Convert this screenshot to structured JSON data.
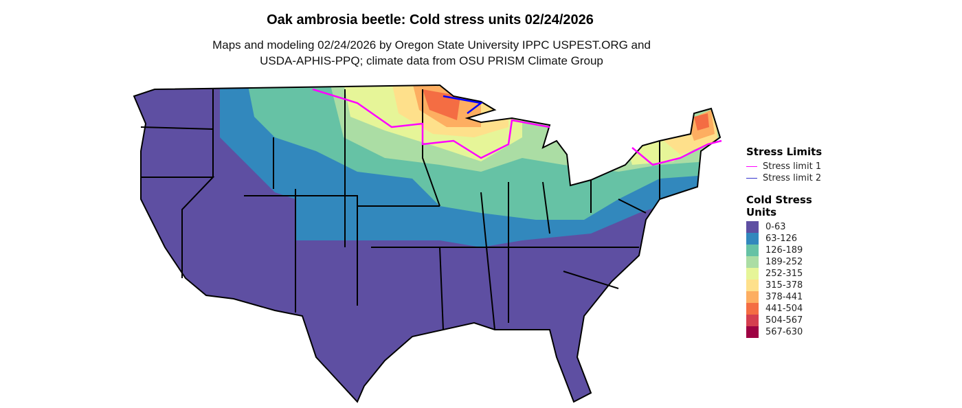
{
  "title": "Oak ambrosia beetle: Cold stress units 02/24/2026",
  "subtitle_line1": "Maps and modeling 02/24/2026 by Oregon State University IPPC USPEST.ORG and",
  "subtitle_line2": "USDA-APHIS-PPQ; climate data from OSU PRISM Climate Group",
  "legend": {
    "stress_title": "Stress Limits",
    "stress": [
      {
        "label": "Stress limit 1",
        "color": "#FF00FF"
      },
      {
        "label": "Stress limit 2",
        "color": "#0000FF"
      }
    ],
    "csu_title_1": "Cold Stress",
    "csu_title_2": "Units",
    "bins": [
      {
        "label": "0-63",
        "color": "#5E4FA2"
      },
      {
        "label": "63-126",
        "color": "#3288BD"
      },
      {
        "label": "126-189",
        "color": "#66C2A5"
      },
      {
        "label": "189-252",
        "color": "#ABDDA4"
      },
      {
        "label": "252-315",
        "color": "#E6F598"
      },
      {
        "label": "315-378",
        "color": "#FEE08B"
      },
      {
        "label": "378-441",
        "color": "#FDAE61"
      },
      {
        "label": "441-504",
        "color": "#F46D43"
      },
      {
        "label": "504-567",
        "color": "#D53E4F"
      },
      {
        "label": "567-630",
        "color": "#9E0142"
      }
    ]
  }
}
